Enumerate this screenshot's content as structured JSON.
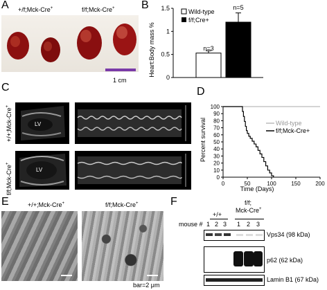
{
  "panels": {
    "A": {
      "letter": "A",
      "label_wt": "+/f;Mck-Cre",
      "label_wt_sup": "+",
      "label_ko": "f/f;Mck-Cre",
      "label_ko_sup": "+",
      "scale": "1 cm"
    },
    "B": {
      "letter": "B",
      "ylabel": "Heart:Body mass %",
      "legend": [
        "Wild-type",
        "f/f;Cre+"
      ],
      "n_labels": [
        "n=3",
        "n=5"
      ]
    },
    "C": {
      "letter": "C",
      "row1_label": "+/+;Mck-Cre",
      "row1_sup": "+",
      "row2_label": "f/f;Mck-Cre",
      "row2_sup": "+",
      "lv": "LV"
    },
    "D": {
      "letter": "D",
      "ylabel": "Percent survival",
      "xlabel": "Time (Days)",
      "legend": [
        "Wild-type",
        "f/f;Mck-Cre+"
      ]
    },
    "E": {
      "letter": "E",
      "label_wt": "+/+;Mck-Cre",
      "label_wt_sup": "+",
      "label_ko": "f/f;Mck-Cre",
      "label_ko_sup": "+",
      "scale": "bar=2 μm"
    },
    "F": {
      "letter": "F",
      "group1": "+/+",
      "group2_line1": "f/f;",
      "group2_line2": "Mck-Cre",
      "group2_sup": "+",
      "mouse_label": "mouse #",
      "lanes": [
        "1",
        "2",
        "3",
        "1",
        "2",
        "3"
      ],
      "blots": [
        "Vps34 (98 kDa)",
        "p62 (62 kDa)",
        "Lamin B1 (67 kDa)"
      ]
    }
  },
  "chart_data": [
    {
      "type": "bar",
      "panel": "B",
      "categories": [
        "Wild-type",
        "f/f;Cre+"
      ],
      "series": [
        {
          "name": "Heart:Body mass %",
          "values": [
            0.53,
            1.2
          ],
          "errors": [
            0.05,
            0.2
          ]
        }
      ],
      "ylabel": "Heart:Body mass %",
      "ylim": [
        0,
        1.5
      ],
      "yticks": [
        0,
        0.5,
        1,
        1.5
      ],
      "ytick_labels": [
        "0",
        "0.5",
        "1",
        "1.5"
      ],
      "colors": [
        "#ffffff",
        "#000000"
      ],
      "annotations": [
        "n=3",
        "n=5"
      ],
      "legend_position": "top-left"
    },
    {
      "type": "line",
      "panel": "D",
      "xlabel": "Time (Days)",
      "ylabel": "Percent survival",
      "xlim": [
        0,
        200
      ],
      "ylim": [
        0,
        100
      ],
      "xticks": [
        0,
        50,
        100,
        150,
        200
      ],
      "yticks": [
        0,
        10,
        20,
        30,
        40,
        50,
        60,
        70,
        80,
        90,
        100
      ],
      "series": [
        {
          "name": "Wild-type",
          "x": [
            0,
            200
          ],
          "y": [
            100,
            100
          ],
          "color": "#bbbbbb"
        },
        {
          "name": "f/f;Mck-Cre+",
          "x": [
            0,
            38,
            40,
            42,
            44,
            46,
            48,
            50,
            53,
            56,
            60,
            64,
            68,
            72,
            76,
            80,
            84,
            88,
            92,
            96,
            100,
            104
          ],
          "y": [
            100,
            100,
            93,
            86,
            79,
            72,
            66,
            62,
            58,
            55,
            51,
            47,
            43,
            38,
            33,
            28,
            22,
            16,
            10,
            6,
            2,
            0
          ],
          "color": "#000000"
        }
      ],
      "legend_position": "right"
    }
  ]
}
